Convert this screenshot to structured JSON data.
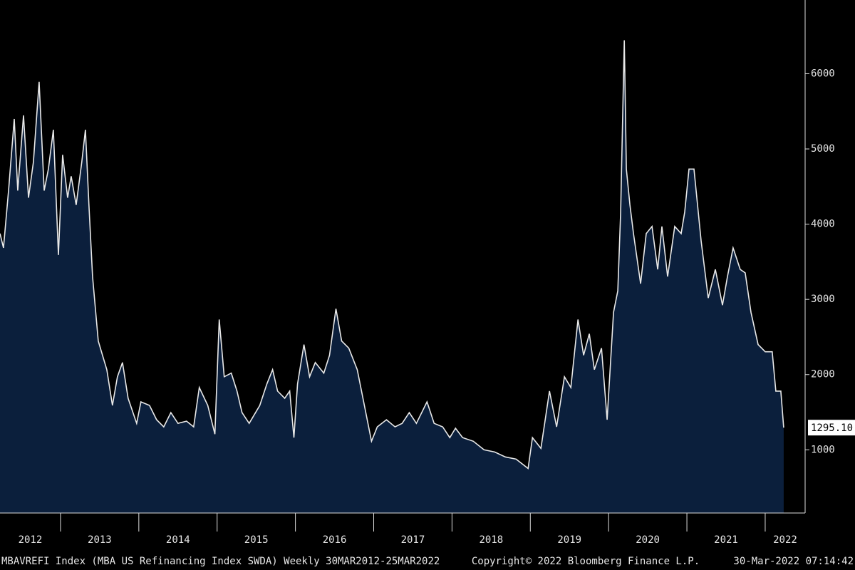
{
  "chart_data": {
    "type": "area",
    "footer_left": "MBAVREFI Index (MBA US Refinancing Index SWDA)  Weekly 30MAR2012-25MAR2022",
    "footer_center": "Copyright© 2022 Bloomberg Finance L.P.",
    "footer_right": "30-Mar-2022 07:14:42",
    "xlim": [
      2012.227,
      2022.51
    ],
    "xticks": [
      2012,
      2013,
      2014,
      2015,
      2016,
      2017,
      2018,
      2019,
      2020,
      2021,
      2022
    ],
    "ylim": [
      160,
      6980
    ],
    "yticks": [
      1000,
      2000,
      3000,
      4000,
      5000,
      6000
    ],
    "y_axis_side": "right",
    "x": [
      2012.227,
      2012.272,
      2012.336,
      2012.409,
      2012.454,
      2012.527,
      2012.591,
      2012.654,
      2012.727,
      2012.791,
      2012.845,
      2012.909,
      2012.973,
      2013.027,
      2013.091,
      2013.136,
      2013.2,
      2013.272,
      2013.318,
      2013.363,
      2013.409,
      2013.482,
      2013.591,
      2013.663,
      2013.727,
      2013.791,
      2013.863,
      2013.972,
      2014.027,
      2014.136,
      2014.227,
      2014.318,
      2014.409,
      2014.5,
      2014.609,
      2014.7,
      2014.772,
      2014.881,
      2014.972,
      2015.027,
      2015.091,
      2015.181,
      2015.254,
      2015.318,
      2015.409,
      2015.545,
      2015.636,
      2015.709,
      2015.772,
      2015.863,
      2015.927,
      2015.981,
      2016.027,
      2016.109,
      2016.181,
      2016.254,
      2016.363,
      2016.436,
      2016.518,
      2016.59,
      2016.681,
      2016.79,
      2016.881,
      2016.972,
      2017.045,
      2017.163,
      2017.272,
      2017.363,
      2017.454,
      2017.545,
      2017.681,
      2017.772,
      2017.881,
      2017.972,
      2018.045,
      2018.136,
      2018.272,
      2018.409,
      2018.545,
      2018.681,
      2018.818,
      2018.972,
      2019.027,
      2019.136,
      2019.245,
      2019.336,
      2019.436,
      2019.518,
      2019.609,
      2019.681,
      2019.754,
      2019.818,
      2019.909,
      2019.981,
      2020.063,
      2020.118,
      2020.154,
      2020.2,
      2020.227,
      2020.272,
      2020.318,
      2020.409,
      2020.481,
      2020.554,
      2020.627,
      2020.681,
      2020.754,
      2020.845,
      2020.927,
      2020.972,
      2021.027,
      2021.09,
      2021.181,
      2021.272,
      2021.363,
      2021.454,
      2021.518,
      2021.59,
      2021.681,
      2021.745,
      2021.818,
      2021.909,
      2022.0,
      2022.09,
      2022.136,
      2022.2,
      2022.236
    ],
    "series": [
      {
        "color": "#e8e8e8",
        "fill": "#0b1f3c",
        "values": [
          3875,
          3685,
          4446,
          5398,
          4446,
          5446,
          4351,
          4827,
          5893,
          4446,
          4732,
          5255,
          3590,
          4922,
          4351,
          4637,
          4256,
          4827,
          5255,
          4256,
          3304,
          2447,
          2066,
          1590,
          1971,
          2161,
          1685,
          1352,
          1638,
          1590,
          1400,
          1305,
          1495,
          1352,
          1381,
          1305,
          1828,
          1590,
          1209,
          2733,
          1971,
          2019,
          1781,
          1495,
          1352,
          1590,
          1876,
          2066,
          1781,
          1685,
          1781,
          1162,
          1876,
          2399,
          1971,
          2161,
          2019,
          2257,
          2875,
          2447,
          2352,
          2066,
          1590,
          1114,
          1305,
          1400,
          1305,
          1352,
          1495,
          1352,
          1638,
          1352,
          1305,
          1162,
          1286,
          1162,
          1114,
          1000,
          971,
          905,
          876,
          752,
          1162,
          1019,
          1781,
          1305,
          1971,
          1828,
          2733,
          2257,
          2542,
          2066,
          2352,
          1400,
          2828,
          3114,
          4161,
          6445,
          4732,
          4256,
          3875,
          3209,
          3875,
          3970,
          3399,
          3970,
          3304,
          3970,
          3875,
          4161,
          4732,
          4732,
          3780,
          3018,
          3399,
          2923,
          3304,
          3685,
          3399,
          3352,
          2828,
          2399,
          2304,
          2304,
          1781,
          1781,
          1295.1
        ],
        "value_labels": [
          null,
          null,
          null,
          null,
          null,
          null,
          null,
          null,
          null,
          null,
          null,
          null,
          null,
          null,
          null,
          null,
          null,
          null,
          null,
          null,
          null,
          null,
          null,
          null,
          null,
          null,
          null,
          null,
          null,
          null,
          null,
          null,
          null,
          null,
          null,
          null,
          null,
          null,
          null,
          null,
          null,
          null,
          null,
          null,
          null,
          null,
          null,
          null,
          null,
          null,
          null,
          null,
          null,
          null,
          null,
          null,
          null,
          null,
          null,
          null,
          null,
          null,
          null,
          null,
          null,
          null,
          null,
          null,
          null,
          null,
          null,
          null,
          null,
          null,
          null,
          null,
          null,
          null,
          null,
          null,
          null,
          null,
          null,
          null,
          null,
          null,
          null,
          null,
          null,
          null,
          null,
          null,
          null,
          null,
          null,
          null,
          null,
          null,
          null,
          null,
          null,
          null,
          null,
          null,
          null,
          null,
          null,
          null,
          null,
          null,
          null,
          null,
          null,
          null,
          null,
          null,
          null,
          null,
          null,
          null,
          null,
          null,
          null,
          null,
          null,
          null,
          "1295.10"
        ]
      }
    ]
  }
}
